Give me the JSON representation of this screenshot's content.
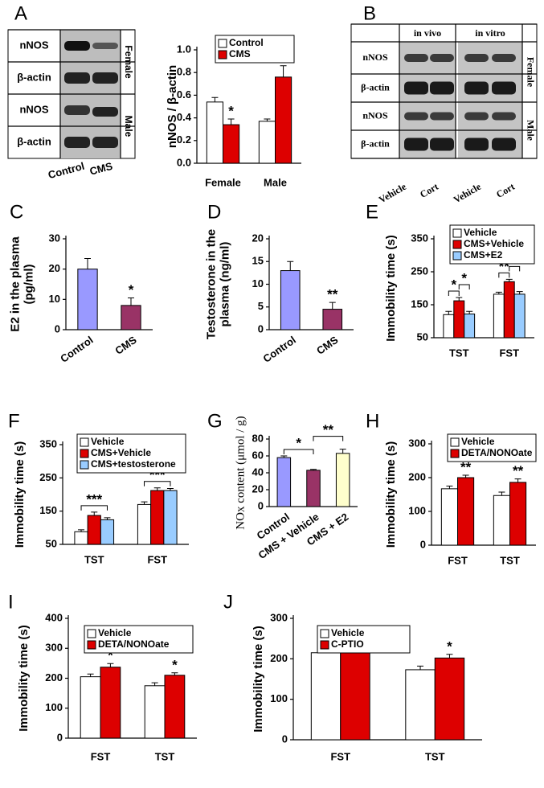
{
  "chart_data": [
    {
      "type": "bar",
      "panel": "A",
      "ylabel": [
        "nNOS / β-actin"
      ],
      "categories": [
        "Female",
        "Male"
      ],
      "series": [
        {
          "name": "Control",
          "color": "#ffffff",
          "values": [
            0.54,
            0.37
          ],
          "errors": [
            0.04,
            0.02
          ]
        },
        {
          "name": "CMS",
          "color": "#dd0000",
          "values": [
            0.34,
            0.76
          ],
          "errors": [
            0.05,
            0.1
          ],
          "significance": [
            "*",
            "**"
          ]
        }
      ],
      "ylim": [
        0,
        1
      ],
      "yticks": [
        {
          "value": 0,
          "label": "0.0"
        },
        0.2,
        0.4,
        0.6,
        0.8,
        {
          "value": 1,
          "label": "1.0"
        }
      ],
      "legend": true
    },
    {
      "type": "bar",
      "panel": "C",
      "ylabel": [
        "E2 in the plasma",
        "(pg/ml)"
      ],
      "categories": [
        "Control",
        "CMS"
      ],
      "values": [
        20,
        8
      ],
      "errors": [
        3.5,
        2.5
      ],
      "colors": [
        "#9999ff",
        "#993366"
      ],
      "significance": [
        null,
        "*"
      ],
      "ylim": [
        0,
        30
      ],
      "yticks": [
        0,
        10,
        20,
        30
      ]
    },
    {
      "type": "bar",
      "panel": "D",
      "ylabel": [
        "Testosterone in the",
        "plasma (ng/ml)"
      ],
      "categories": [
        "Control",
        "CMS"
      ],
      "values": [
        13,
        4.5
      ],
      "errors": [
        2,
        1.5
      ],
      "colors": [
        "#9999ff",
        "#993366"
      ],
      "significance": [
        null,
        "**"
      ],
      "ylim": [
        0,
        20
      ],
      "yticks": [
        0,
        5,
        10,
        15,
        20
      ]
    },
    {
      "type": "bar",
      "panel": "E",
      "ylabel": [
        "Immobility time (s)"
      ],
      "categories": [
        "TST",
        "FST"
      ],
      "series": [
        {
          "name": "Vehicle",
          "color": "#ffffff",
          "values": [
            120,
            182
          ],
          "errors": [
            10,
            6
          ]
        },
        {
          "name": "CMS+Vehicle",
          "color": "#dd0000",
          "values": [
            162,
            220
          ],
          "errors": [
            10,
            7
          ]
        },
        {
          "name": "CMS+E2",
          "color": "#99ccff",
          "values": [
            122,
            182
          ],
          "errors": [
            8,
            8
          ]
        }
      ],
      "brackets": [
        {
          "text": "*",
          "category": "TST",
          "between": [
            "Vehicle",
            "CMS+Vehicle"
          ]
        },
        {
          "text": "*",
          "category": "TST",
          "between": [
            "CMS+Vehicle",
            "CMS+E2"
          ]
        },
        {
          "text": "**",
          "category": "FST",
          "between": [
            "Vehicle",
            "CMS+Vehicle"
          ]
        },
        {
          "text": "**",
          "category": "FST",
          "between": [
            "CMS+Vehicle",
            "CMS+E2"
          ]
        }
      ],
      "ylim": [
        50,
        350
      ],
      "yticks": [
        50,
        150,
        250,
        350
      ],
      "legend": true
    },
    {
      "type": "bar",
      "panel": "F",
      "ylabel": [
        "Immobility time (s)"
      ],
      "categories": [
        "TST",
        "FST"
      ],
      "series": [
        {
          "name": "Vehicle",
          "color": "#ffffff",
          "values": [
            88,
            170
          ],
          "errors": [
            6,
            8
          ]
        },
        {
          "name": "CMS+Vehicle",
          "color": "#dd0000",
          "values": [
            137,
            212
          ],
          "errors": [
            10,
            8
          ]
        },
        {
          "name": "CMS+testosterone",
          "color": "#99ccff",
          "values": [
            124,
            212
          ],
          "errors": [
            6,
            6
          ]
        }
      ],
      "brackets": [
        {
          "text": "***",
          "category": "TST",
          "between": [
            "Vehicle",
            "CMS+testosterone"
          ]
        },
        {
          "text": "***",
          "category": "FST",
          "between": [
            "Vehicle",
            "CMS+testosterone"
          ]
        }
      ],
      "ylim": [
        50,
        350
      ],
      "yticks": [
        50,
        150,
        250,
        350
      ],
      "legend": true
    },
    {
      "type": "bar",
      "panel": "G",
      "ylabel": [
        "NOx content (μmol / g)"
      ],
      "categories": [
        "Control",
        "CMS + Vehicle",
        "CMS + E2"
      ],
      "values": [
        58,
        43,
        63
      ],
      "errors": [
        2,
        1,
        5
      ],
      "colors": [
        "#9999ff",
        "#993366",
        "#ffffcc"
      ],
      "brackets": [
        {
          "text": "*",
          "between": [
            "Control",
            "CMS + Vehicle"
          ]
        },
        {
          "text": "**",
          "between": [
            "CMS + Vehicle",
            "CMS + E2"
          ]
        }
      ],
      "ylim": [
        0,
        80
      ],
      "yticks": [
        0,
        20,
        40,
        60,
        80
      ]
    },
    {
      "type": "bar",
      "panel": "H",
      "ylabel": [
        "Immobility time (s)"
      ],
      "categories": [
        "FST",
        "TST"
      ],
      "series": [
        {
          "name": "Vehicle",
          "color": "#ffffff",
          "values": [
            167,
            147
          ],
          "errors": [
            8,
            10
          ]
        },
        {
          "name": "DETA/NONOate",
          "color": "#dd0000",
          "values": [
            200,
            186
          ],
          "errors": [
            7,
            10
          ],
          "significance": [
            "**",
            "**"
          ]
        }
      ],
      "ylim": [
        0,
        300
      ],
      "yticks": [
        0,
        100,
        200,
        300
      ],
      "legend": true
    },
    {
      "type": "bar",
      "panel": "I",
      "ylabel": [
        "Immobility time (s)"
      ],
      "categories": [
        "FST",
        "TST"
      ],
      "series": [
        {
          "name": "Vehicle",
          "color": "#ffffff",
          "values": [
            205,
            175
          ],
          "errors": [
            9,
            10
          ]
        },
        {
          "name": "DETA/NONOate",
          "color": "#dd0000",
          "values": [
            237,
            210
          ],
          "errors": [
            12,
            8
          ],
          "significance": [
            "*",
            "*"
          ]
        }
      ],
      "ylim": [
        0,
        400
      ],
      "yticks": [
        0,
        100,
        200,
        300,
        400
      ],
      "legend": true
    },
    {
      "type": "bar",
      "panel": "J",
      "ylabel": [
        "Immobility time (s)"
      ],
      "categories": [
        "FST",
        "TST"
      ],
      "series": [
        {
          "name": "Vehicle",
          "color": "#ffffff",
          "values": [
            215,
            173
          ],
          "errors": [
            5,
            9
          ]
        },
        {
          "name": "C-PTIO",
          "color": "#dd0000",
          "values": [
            217,
            202
          ],
          "errors": [
            3,
            9
          ],
          "significance": [
            null,
            "*"
          ]
        }
      ],
      "ylim": [
        0,
        300
      ],
      "yticks": [
        0,
        100,
        200,
        300
      ],
      "legend": true
    }
  ],
  "blots": [
    {
      "panel": "B0",
      "rows": [
        "nNOS",
        "β-actin",
        "nNOS",
        "β-actin"
      ],
      "sexes": [
        "Female",
        "Male"
      ],
      "lanes": [
        "Control",
        "CMS"
      ]
    },
    {
      "panel": "B",
      "groups": [
        "in vivo",
        "in vitro"
      ],
      "rows": [
        "nNOS",
        "β-actin",
        "nNOS",
        "β-actin"
      ],
      "sexes": [
        "Female",
        "Male"
      ],
      "lanes": [
        "Vehicle",
        "Cort",
        "Vehicle",
        "Cort"
      ]
    }
  ]
}
